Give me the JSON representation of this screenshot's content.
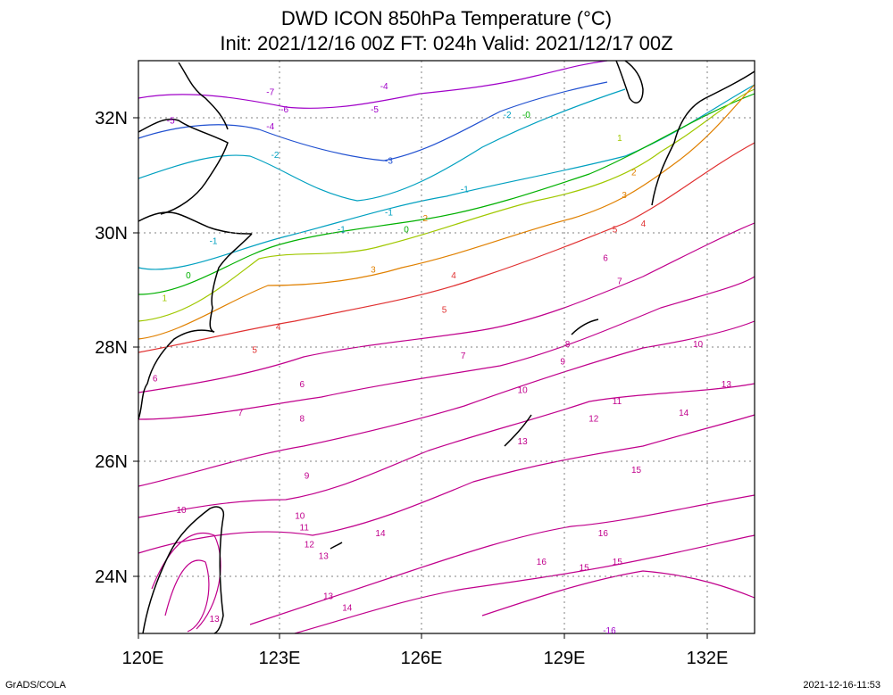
{
  "title": {
    "line1": "DWD ICON 850hPa Temperature (°C)",
    "line2": "Init: 2021/12/16 00Z  FT: 024h  Valid: 2021/12/17 00Z"
  },
  "axes": {
    "x_ticks": [
      "120E",
      "123E",
      "126E",
      "129E",
      "132E"
    ],
    "y_ticks": [
      "24N",
      "26N",
      "28N",
      "30N",
      "32N"
    ],
    "lon_range": [
      120,
      133
    ],
    "lat_range": [
      23,
      33
    ],
    "grid": "dotted"
  },
  "footer": {
    "credit": "GrADS/COLA",
    "timestamp": "2021-12-16-11:53"
  },
  "contour_labels": [
    {
      "text": "-7",
      "lon": 122.7,
      "lat": 32.4
    },
    {
      "text": "-4",
      "lon": 125.1,
      "lat": 32.5
    },
    {
      "text": "-6",
      "lon": 123.0,
      "lat": 32.1
    },
    {
      "text": "-5",
      "lon": 120.6,
      "lat": 31.9
    },
    {
      "text": "-5",
      "lon": 124.9,
      "lat": 32.1
    },
    {
      "text": "-4",
      "lon": 122.7,
      "lat": 31.8
    },
    {
      "text": "-2",
      "lon": 127.7,
      "lat": 32.0
    },
    {
      "text": "-0",
      "lon": 128.1,
      "lat": 32.0
    },
    {
      "text": "-2",
      "lon": 122.8,
      "lat": 31.3
    },
    {
      "text": "-3",
      "lon": 125.2,
      "lat": 31.2
    },
    {
      "text": "-1",
      "lon": 125.2,
      "lat": 30.3
    },
    {
      "text": "-1",
      "lon": 126.8,
      "lat": 30.7
    },
    {
      "text": "-1",
      "lon": 121.5,
      "lat": 29.8
    },
    {
      "text": "-1",
      "lon": 124.2,
      "lat": 30.0
    },
    {
      "text": "0",
      "lon": 125.6,
      "lat": 30.0
    },
    {
      "text": "2",
      "lon": 126.0,
      "lat": 30.2
    },
    {
      "text": "1",
      "lon": 130.1,
      "lat": 31.6
    },
    {
      "text": "2",
      "lon": 130.4,
      "lat": 31.0
    },
    {
      "text": "3",
      "lon": 130.2,
      "lat": 30.6
    },
    {
      "text": "4",
      "lon": 130.6,
      "lat": 30.1
    },
    {
      "text": "5",
      "lon": 130.0,
      "lat": 30.0
    },
    {
      "text": "0",
      "lon": 121.0,
      "lat": 29.2
    },
    {
      "text": "1",
      "lon": 120.5,
      "lat": 28.8
    },
    {
      "text": "3",
      "lon": 124.9,
      "lat": 29.3
    },
    {
      "text": "4",
      "lon": 126.6,
      "lat": 29.2
    },
    {
      "text": "4",
      "lon": 122.9,
      "lat": 28.3
    },
    {
      "text": "5",
      "lon": 126.4,
      "lat": 28.6
    },
    {
      "text": "6",
      "lon": 129.8,
      "lat": 29.5
    },
    {
      "text": "7",
      "lon": 130.1,
      "lat": 29.1
    },
    {
      "text": "8",
      "lon": 129.0,
      "lat": 28.0
    },
    {
      "text": "9",
      "lon": 128.9,
      "lat": 27.7
    },
    {
      "text": "5",
      "lon": 122.4,
      "lat": 27.9
    },
    {
      "text": "7",
      "lon": 126.8,
      "lat": 27.8
    },
    {
      "text": "6",
      "lon": 120.3,
      "lat": 27.4
    },
    {
      "text": "6",
      "lon": 123.4,
      "lat": 27.3
    },
    {
      "text": "10",
      "lon": 128.0,
      "lat": 27.2
    },
    {
      "text": "11",
      "lon": 130.0,
      "lat": 27.0
    },
    {
      "text": "10",
      "lon": 131.7,
      "lat": 28.0
    },
    {
      "text": "13",
      "lon": 132.3,
      "lat": 27.3
    },
    {
      "text": "7",
      "lon": 122.1,
      "lat": 26.8
    },
    {
      "text": "8",
      "lon": 123.4,
      "lat": 26.7
    },
    {
      "text": "12",
      "lon": 129.5,
      "lat": 26.7
    },
    {
      "text": "14",
      "lon": 131.4,
      "lat": 26.8
    },
    {
      "text": "13",
      "lon": 128.0,
      "lat": 26.3
    },
    {
      "text": "9",
      "lon": 123.5,
      "lat": 25.7
    },
    {
      "text": "15",
      "lon": 130.4,
      "lat": 25.8
    },
    {
      "text": "10",
      "lon": 120.8,
      "lat": 25.1
    },
    {
      "text": "10",
      "lon": 123.3,
      "lat": 25.0
    },
    {
      "text": "11",
      "lon": 123.4,
      "lat": 24.8
    },
    {
      "text": "14",
      "lon": 125.0,
      "lat": 24.7
    },
    {
      "text": "16",
      "lon": 129.7,
      "lat": 24.7
    },
    {
      "text": "12",
      "lon": 123.5,
      "lat": 24.5
    },
    {
      "text": "13",
      "lon": 123.8,
      "lat": 24.3
    },
    {
      "text": "16",
      "lon": 128.4,
      "lat": 24.2
    },
    {
      "text": "15",
      "lon": 129.3,
      "lat": 24.1
    },
    {
      "text": "15",
      "lon": 130.0,
      "lat": 24.2
    },
    {
      "text": "13",
      "lon": 123.9,
      "lat": 23.6
    },
    {
      "text": "14",
      "lon": 124.3,
      "lat": 23.4
    },
    {
      "text": "13",
      "lon": 121.5,
      "lat": 23.2
    },
    {
      "text": "-16",
      "lon": 129.8,
      "lat": 23.0
    }
  ],
  "colors": {
    "neg_cold": "#a000c8",
    "cool": "#2050d0",
    "cyan": "#00a0c0",
    "zero": "#00b000",
    "yellow_green": "#a0c800",
    "orange": "#e08000",
    "warm": "#e03030",
    "hot": "#c0008c"
  }
}
